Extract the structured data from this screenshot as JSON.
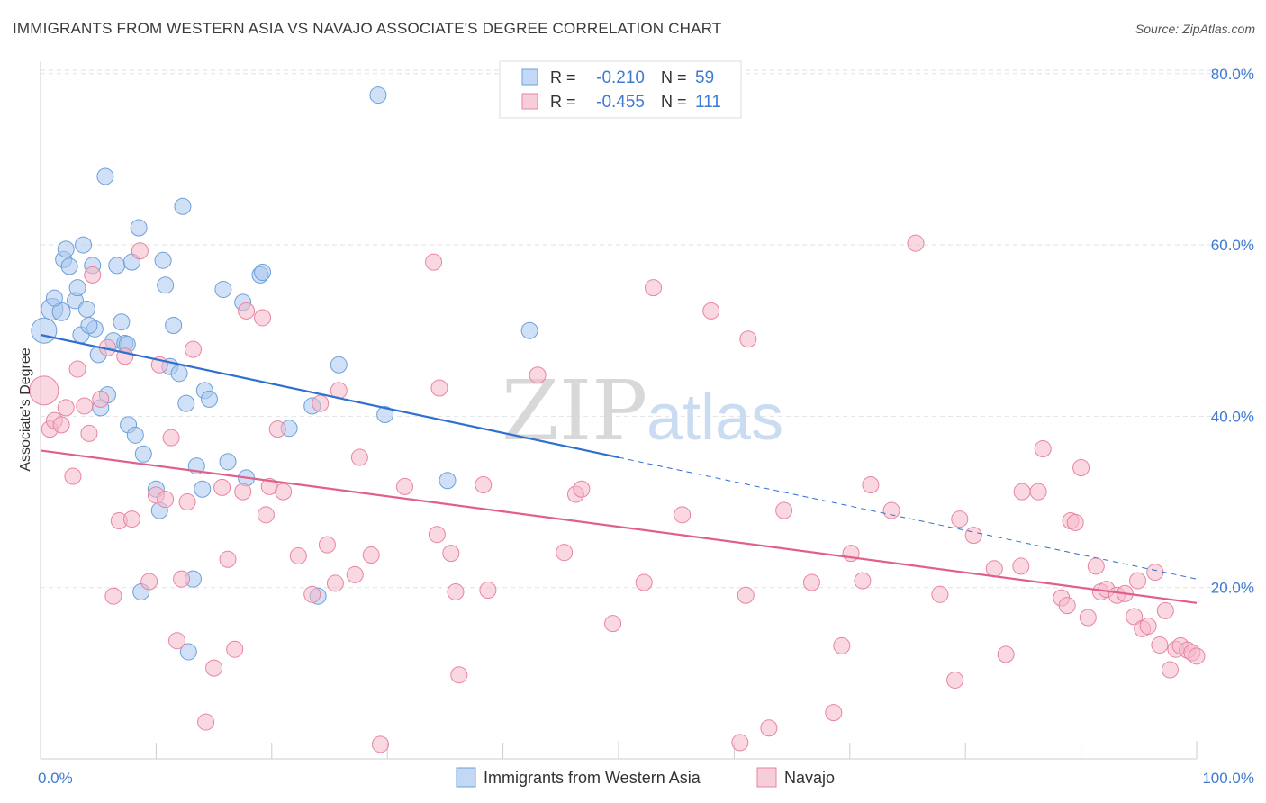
{
  "header": {
    "title": "IMMIGRANTS FROM WESTERN ASIA VS NAVAJO ASSOCIATE'S DEGREE CORRELATION CHART",
    "source": "Source: ZipAtlas.com"
  },
  "watermark": {
    "part1": "ZIP",
    "part2": "atlas"
  },
  "legend_top": {
    "rows": [
      {
        "r_label": "R =",
        "r_value": "-0.210",
        "n_label": "N =",
        "n_value": "59",
        "color": "#a9c8f0"
      },
      {
        "r_label": "R =",
        "r_value": "-0.455",
        "n_label": "N =",
        "n_value": "111",
        "color": "#f5b8cb"
      }
    ]
  },
  "chart_data": {
    "type": "scatter",
    "title": "IMMIGRANTS FROM WESTERN ASIA VS NAVAJO ASSOCIATE'S DEGREE CORRELATION CHART",
    "xlabel": "",
    "ylabel": "Associate's Degree",
    "xlim": [
      0,
      100
    ],
    "ylim": [
      0,
      84
    ],
    "x_tick_labels": [
      "0.0%",
      "100.0%"
    ],
    "y_ticks": [
      20,
      40,
      60,
      80
    ],
    "y_tick_labels": [
      "20.0%",
      "40.0%",
      "60.0%",
      "80.0%"
    ],
    "grid": true,
    "legend_position": "bottom-center",
    "series": [
      {
        "name": "Immigrants from Western Asia",
        "color": "#a9c8f0",
        "edge": "#6e9fd8",
        "line_color": "#2f6fd0",
        "trend": {
          "x0": 0,
          "y0": 49.5,
          "x1": 50,
          "y1": 35.2,
          "dash_to_x": 100,
          "dash_to_y": 21.0
        },
        "points": [
          {
            "x": 0.3,
            "y": 50,
            "s": 14
          },
          {
            "x": 1,
            "y": 52.5,
            "s": 12
          },
          {
            "x": 1.8,
            "y": 52.2,
            "s": 10
          },
          {
            "x": 2,
            "y": 58.3,
            "s": 9
          },
          {
            "x": 2.2,
            "y": 59.5,
            "s": 9
          },
          {
            "x": 2.5,
            "y": 57.5,
            "s": 9
          },
          {
            "x": 3,
            "y": 53.5,
            "s": 9
          },
          {
            "x": 3.2,
            "y": 55,
            "s": 9
          },
          {
            "x": 3.5,
            "y": 49.5,
            "s": 9
          },
          {
            "x": 3.7,
            "y": 60,
            "s": 9
          },
          {
            "x": 4,
            "y": 52.5,
            "s": 9
          },
          {
            "x": 4.5,
            "y": 57.6,
            "s": 9
          },
          {
            "x": 4.7,
            "y": 50.2,
            "s": 9
          },
          {
            "x": 5,
            "y": 47.2,
            "s": 9
          },
          {
            "x": 5.2,
            "y": 41,
            "s": 9
          },
          {
            "x": 5.6,
            "y": 68,
            "s": 9
          },
          {
            "x": 5.8,
            "y": 42.5,
            "s": 9
          },
          {
            "x": 6.3,
            "y": 48.8,
            "s": 9
          },
          {
            "x": 6.6,
            "y": 57.6,
            "s": 9
          },
          {
            "x": 7,
            "y": 51,
            "s": 9
          },
          {
            "x": 7.3,
            "y": 48.5,
            "s": 9
          },
          {
            "x": 7.6,
            "y": 39,
            "s": 9
          },
          {
            "x": 7.9,
            "y": 58,
            "s": 9
          },
          {
            "x": 8.2,
            "y": 37.8,
            "s": 9
          },
          {
            "x": 8.5,
            "y": 62,
            "s": 9
          },
          {
            "x": 8.9,
            "y": 35.6,
            "s": 9
          },
          {
            "x": 8.7,
            "y": 19.5,
            "s": 9
          },
          {
            "x": 10,
            "y": 31.5,
            "s": 9
          },
          {
            "x": 10.3,
            "y": 29,
            "s": 9
          },
          {
            "x": 10.6,
            "y": 58.2,
            "s": 9
          },
          {
            "x": 10.8,
            "y": 55.3,
            "s": 9
          },
          {
            "x": 11.2,
            "y": 45.8,
            "s": 9
          },
          {
            "x": 11.5,
            "y": 50.6,
            "s": 9
          },
          {
            "x": 12,
            "y": 45,
            "s": 9
          },
          {
            "x": 12.3,
            "y": 64.5,
            "s": 9
          },
          {
            "x": 12.6,
            "y": 41.5,
            "s": 9
          },
          {
            "x": 12.8,
            "y": 12.5,
            "s": 9
          },
          {
            "x": 13.2,
            "y": 21,
            "s": 9
          },
          {
            "x": 13.5,
            "y": 34.2,
            "s": 9
          },
          {
            "x": 14,
            "y": 31.5,
            "s": 9
          },
          {
            "x": 14.2,
            "y": 43,
            "s": 9
          },
          {
            "x": 14.6,
            "y": 42,
            "s": 9
          },
          {
            "x": 15.8,
            "y": 54.8,
            "s": 9
          },
          {
            "x": 16.2,
            "y": 34.7,
            "s": 9
          },
          {
            "x": 17.5,
            "y": 53.3,
            "s": 9
          },
          {
            "x": 17.8,
            "y": 32.8,
            "s": 9
          },
          {
            "x": 19,
            "y": 56.5,
            "s": 9
          },
          {
            "x": 19.2,
            "y": 56.8,
            "s": 9
          },
          {
            "x": 21.5,
            "y": 38.6,
            "s": 9
          },
          {
            "x": 23.5,
            "y": 41.2,
            "s": 9
          },
          {
            "x": 24,
            "y": 19,
            "s": 9
          },
          {
            "x": 25.8,
            "y": 46,
            "s": 9
          },
          {
            "x": 29.2,
            "y": 77.5,
            "s": 9
          },
          {
            "x": 29.8,
            "y": 40.2,
            "s": 9
          },
          {
            "x": 35.2,
            "y": 32.5,
            "s": 9
          },
          {
            "x": 42.3,
            "y": 50,
            "s": 9
          },
          {
            "x": 7.5,
            "y": 48.4,
            "s": 9
          },
          {
            "x": 4.2,
            "y": 50.6,
            "s": 9
          },
          {
            "x": 1.2,
            "y": 53.8,
            "s": 9
          }
        ]
      },
      {
        "name": "Navajo",
        "color": "#f5b8cb",
        "edge": "#e8849f",
        "line_color": "#e0608b",
        "trend": {
          "x0": 0,
          "y0": 36,
          "x1": 100,
          "y1": 18.2
        },
        "points": [
          {
            "x": 0.3,
            "y": 43,
            "s": 16
          },
          {
            "x": 0.8,
            "y": 38.5,
            "s": 9
          },
          {
            "x": 1.2,
            "y": 39.5,
            "s": 9
          },
          {
            "x": 1.8,
            "y": 39,
            "s": 9
          },
          {
            "x": 2.2,
            "y": 41,
            "s": 9
          },
          {
            "x": 2.8,
            "y": 33,
            "s": 9
          },
          {
            "x": 3.2,
            "y": 45.5,
            "s": 9
          },
          {
            "x": 3.8,
            "y": 41.2,
            "s": 9
          },
          {
            "x": 4.2,
            "y": 38,
            "s": 9
          },
          {
            "x": 4.5,
            "y": 56.5,
            "s": 9
          },
          {
            "x": 5.2,
            "y": 42,
            "s": 9
          },
          {
            "x": 5.8,
            "y": 48,
            "s": 9
          },
          {
            "x": 6.3,
            "y": 19,
            "s": 9
          },
          {
            "x": 6.8,
            "y": 27.8,
            "s": 9
          },
          {
            "x": 7.3,
            "y": 47,
            "s": 9
          },
          {
            "x": 7.9,
            "y": 28,
            "s": 9
          },
          {
            "x": 8.6,
            "y": 59.3,
            "s": 9
          },
          {
            "x": 9.4,
            "y": 20.7,
            "s": 9
          },
          {
            "x": 10,
            "y": 30.8,
            "s": 9
          },
          {
            "x": 10.3,
            "y": 46,
            "s": 9
          },
          {
            "x": 10.8,
            "y": 30.3,
            "s": 9
          },
          {
            "x": 11.3,
            "y": 37.5,
            "s": 9
          },
          {
            "x": 11.8,
            "y": 13.8,
            "s": 9
          },
          {
            "x": 12.2,
            "y": 21,
            "s": 9
          },
          {
            "x": 12.7,
            "y": 30,
            "s": 9
          },
          {
            "x": 13.2,
            "y": 47.8,
            "s": 9
          },
          {
            "x": 14.3,
            "y": 4.3,
            "s": 9
          },
          {
            "x": 15,
            "y": 10.6,
            "s": 9
          },
          {
            "x": 15.7,
            "y": 31.7,
            "s": 9
          },
          {
            "x": 16.2,
            "y": 23.3,
            "s": 9
          },
          {
            "x": 16.8,
            "y": 12.8,
            "s": 9
          },
          {
            "x": 17.5,
            "y": 31.2,
            "s": 9
          },
          {
            "x": 17.8,
            "y": 52.3,
            "s": 9
          },
          {
            "x": 19.2,
            "y": 51.5,
            "s": 9
          },
          {
            "x": 19.5,
            "y": 28.5,
            "s": 9
          },
          {
            "x": 19.8,
            "y": 31.8,
            "s": 9
          },
          {
            "x": 20.5,
            "y": 38.5,
            "s": 9
          },
          {
            "x": 21,
            "y": 31.2,
            "s": 9
          },
          {
            "x": 22.3,
            "y": 23.7,
            "s": 9
          },
          {
            "x": 23.5,
            "y": 19.2,
            "s": 9
          },
          {
            "x": 24.2,
            "y": 41.5,
            "s": 9
          },
          {
            "x": 24.8,
            "y": 25,
            "s": 9
          },
          {
            "x": 25.5,
            "y": 20.5,
            "s": 9
          },
          {
            "x": 25.8,
            "y": 43,
            "s": 9
          },
          {
            "x": 27.2,
            "y": 21.5,
            "s": 9
          },
          {
            "x": 27.6,
            "y": 35.2,
            "s": 9
          },
          {
            "x": 28.6,
            "y": 23.8,
            "s": 9
          },
          {
            "x": 29.4,
            "y": 1.7,
            "s": 9
          },
          {
            "x": 31.5,
            "y": 31.8,
            "s": 9
          },
          {
            "x": 34,
            "y": 58,
            "s": 9
          },
          {
            "x": 34.3,
            "y": 26.2,
            "s": 9
          },
          {
            "x": 34.5,
            "y": 43.3,
            "s": 9
          },
          {
            "x": 35.5,
            "y": 24,
            "s": 9
          },
          {
            "x": 35.9,
            "y": 19.5,
            "s": 9
          },
          {
            "x": 36.2,
            "y": 9.8,
            "s": 9
          },
          {
            "x": 38.3,
            "y": 32,
            "s": 9
          },
          {
            "x": 38.7,
            "y": 19.7,
            "s": 9
          },
          {
            "x": 43,
            "y": 44.8,
            "s": 9
          },
          {
            "x": 45.3,
            "y": 24.1,
            "s": 9
          },
          {
            "x": 46.3,
            "y": 30.9,
            "s": 9
          },
          {
            "x": 46.8,
            "y": 31.5,
            "s": 9
          },
          {
            "x": 49.5,
            "y": 15.8,
            "s": 9
          },
          {
            "x": 52.2,
            "y": 20.6,
            "s": 9
          },
          {
            "x": 53,
            "y": 55,
            "s": 9
          },
          {
            "x": 55.5,
            "y": 28.5,
            "s": 9
          },
          {
            "x": 58,
            "y": 52.3,
            "s": 9
          },
          {
            "x": 60.5,
            "y": 1.9,
            "s": 9
          },
          {
            "x": 61,
            "y": 19.1,
            "s": 9
          },
          {
            "x": 61.2,
            "y": 49,
            "s": 9
          },
          {
            "x": 63,
            "y": 3.6,
            "s": 9
          },
          {
            "x": 64.3,
            "y": 29,
            "s": 9
          },
          {
            "x": 66.7,
            "y": 20.6,
            "s": 9
          },
          {
            "x": 68.6,
            "y": 5.4,
            "s": 9
          },
          {
            "x": 69.3,
            "y": 13.2,
            "s": 9
          },
          {
            "x": 70.1,
            "y": 24,
            "s": 9
          },
          {
            "x": 71.1,
            "y": 20.8,
            "s": 9
          },
          {
            "x": 71.8,
            "y": 32,
            "s": 9
          },
          {
            "x": 73.6,
            "y": 29,
            "s": 9
          },
          {
            "x": 75.7,
            "y": 60.2,
            "s": 9
          },
          {
            "x": 77.8,
            "y": 19.2,
            "s": 9
          },
          {
            "x": 79.1,
            "y": 9.2,
            "s": 9
          },
          {
            "x": 79.5,
            "y": 28,
            "s": 9
          },
          {
            "x": 80.7,
            "y": 26.1,
            "s": 9
          },
          {
            "x": 82.5,
            "y": 22.2,
            "s": 9
          },
          {
            "x": 83.5,
            "y": 12.2,
            "s": 9
          },
          {
            "x": 84.8,
            "y": 22.5,
            "s": 9
          },
          {
            "x": 84.9,
            "y": 31.2,
            "s": 9
          },
          {
            "x": 86.3,
            "y": 31.2,
            "s": 9
          },
          {
            "x": 86.7,
            "y": 36.2,
            "s": 9
          },
          {
            "x": 88.3,
            "y": 18.8,
            "s": 9
          },
          {
            "x": 88.8,
            "y": 17.9,
            "s": 9
          },
          {
            "x": 89.1,
            "y": 27.8,
            "s": 9
          },
          {
            "x": 89.5,
            "y": 27.6,
            "s": 9
          },
          {
            "x": 90,
            "y": 34,
            "s": 9
          },
          {
            "x": 90.6,
            "y": 16.5,
            "s": 9
          },
          {
            "x": 91.3,
            "y": 22.5,
            "s": 9
          },
          {
            "x": 91.7,
            "y": 19.5,
            "s": 9
          },
          {
            "x": 92.2,
            "y": 19.8,
            "s": 9
          },
          {
            "x": 93.1,
            "y": 19.1,
            "s": 9
          },
          {
            "x": 93.8,
            "y": 19.3,
            "s": 9
          },
          {
            "x": 94.6,
            "y": 16.6,
            "s": 9
          },
          {
            "x": 94.9,
            "y": 20.8,
            "s": 9
          },
          {
            "x": 95.3,
            "y": 15.2,
            "s": 9
          },
          {
            "x": 95.8,
            "y": 15.5,
            "s": 9
          },
          {
            "x": 96.4,
            "y": 21.8,
            "s": 9
          },
          {
            "x": 96.8,
            "y": 13.3,
            "s": 9
          },
          {
            "x": 97.3,
            "y": 17.3,
            "s": 9
          },
          {
            "x": 97.7,
            "y": 10.4,
            "s": 9
          },
          {
            "x": 98.2,
            "y": 12.8,
            "s": 9
          },
          {
            "x": 98.6,
            "y": 13.2,
            "s": 9
          },
          {
            "x": 99.2,
            "y": 12.7,
            "s": 9
          },
          {
            "x": 99.6,
            "y": 12.4,
            "s": 9
          },
          {
            "x": 100,
            "y": 12,
            "s": 9
          }
        ]
      }
    ]
  }
}
